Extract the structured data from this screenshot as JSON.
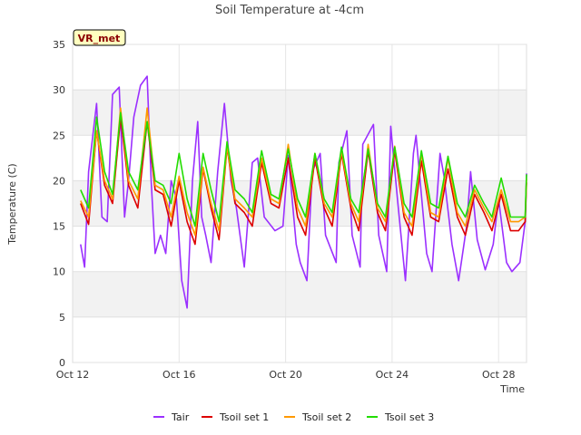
{
  "chart_data": {
    "type": "line",
    "title": "Soil Temperature at -4cm",
    "xlabel": "Time",
    "ylabel": "Temperature (C)",
    "badge": "VR_met",
    "x_range": [
      "2023-10-12",
      "2023-10-29"
    ],
    "ylim": [
      0,
      35
    ],
    "y_ticks": [
      0,
      5,
      10,
      15,
      20,
      25,
      30,
      35
    ],
    "x_ticks": [
      {
        "day": 12,
        "label": "Oct 12"
      },
      {
        "day": 16,
        "label": "Oct 16"
      },
      {
        "day": 20,
        "label": "Oct 20"
      },
      {
        "day": 24,
        "label": "Oct 24"
      },
      {
        "day": 28,
        "label": "Oct 28"
      }
    ],
    "grid": "horizontal bands",
    "legend_position": "bottom",
    "x_units": "day of October",
    "series": [
      {
        "name": "Tair",
        "color": "#9b30ff",
        "x": [
          12.3,
          12.45,
          12.6,
          12.9,
          13.1,
          13.3,
          13.5,
          13.75,
          13.95,
          14.1,
          14.3,
          14.55,
          14.8,
          14.95,
          15.1,
          15.3,
          15.5,
          15.7,
          15.9,
          16.1,
          16.3,
          16.5,
          16.7,
          16.85,
          17.0,
          17.2,
          17.45,
          17.7,
          17.95,
          18.15,
          18.45,
          18.75,
          18.95,
          19.2,
          19.6,
          19.9,
          20.1,
          20.4,
          20.55,
          20.8,
          21.0,
          21.3,
          21.5,
          21.9,
          22.0,
          22.3,
          22.5,
          22.8,
          22.9,
          23.3,
          23.5,
          23.8,
          23.95,
          24.2,
          24.5,
          24.8,
          24.9,
          25.3,
          25.5,
          25.8,
          25.95,
          26.25,
          26.5,
          26.8,
          26.95,
          27.2,
          27.5,
          27.8,
          28.0,
          28.3,
          28.5,
          28.8,
          29.0,
          29.05
        ],
        "values": [
          13,
          10.5,
          21,
          28.5,
          16,
          15.5,
          29.5,
          30.3,
          16,
          20,
          27,
          30.5,
          31.5,
          20,
          12,
          14,
          12,
          20,
          18,
          9,
          6,
          20,
          26.5,
          16,
          14,
          11,
          21,
          28.5,
          20,
          17,
          10.5,
          22,
          22.5,
          16,
          14.5,
          15,
          22.8,
          13,
          11,
          9,
          21,
          23,
          14,
          11,
          22,
          25.5,
          14,
          10.5,
          24,
          26.2,
          14,
          10,
          26,
          18,
          9,
          23,
          25,
          12,
          10,
          23,
          20.5,
          13,
          9,
          15,
          21,
          13.5,
          10.2,
          13,
          18,
          11,
          10,
          11,
          15.5,
          20.8
        ]
      },
      {
        "name": "Tsoil set 1",
        "color": "#dd0000",
        "x": [
          12.3,
          12.6,
          12.9,
          13.2,
          13.5,
          13.8,
          14.1,
          14.45,
          14.8,
          15.1,
          15.4,
          15.7,
          16.0,
          16.3,
          16.6,
          16.9,
          17.2,
          17.5,
          17.8,
          18.1,
          18.45,
          18.75,
          19.1,
          19.45,
          19.75,
          20.1,
          20.45,
          20.75,
          21.1,
          21.45,
          21.75,
          22.1,
          22.45,
          22.75,
          23.1,
          23.45,
          23.75,
          24.1,
          24.45,
          24.75,
          25.1,
          25.45,
          25.75,
          26.1,
          26.45,
          26.75,
          27.1,
          27.45,
          27.75,
          28.1,
          28.45,
          28.75,
          29.0,
          29.05
        ],
        "values": [
          17.5,
          15.2,
          25.5,
          19.5,
          17.5,
          27,
          19.5,
          17,
          26.5,
          19,
          18.5,
          15,
          20,
          15.5,
          13,
          21.3,
          17,
          13.5,
          23.7,
          17.5,
          16.5,
          15,
          22,
          17.5,
          17,
          22.5,
          16,
          14,
          22.5,
          17,
          15,
          23,
          17,
          14.5,
          23.3,
          16.5,
          14.5,
          23.3,
          16,
          14,
          22.2,
          16,
          15.5,
          21.3,
          16,
          14,
          18.5,
          16.5,
          14.5,
          18.5,
          14.5,
          14.5,
          15.5,
          19.8
        ]
      },
      {
        "name": "Tsoil set 2",
        "color": "#ff9900",
        "x": [
          12.3,
          12.6,
          12.9,
          13.2,
          13.5,
          13.8,
          14.1,
          14.45,
          14.8,
          15.1,
          15.4,
          15.7,
          16.0,
          16.3,
          16.6,
          16.9,
          17.2,
          17.5,
          17.8,
          18.1,
          18.45,
          18.75,
          19.1,
          19.45,
          19.75,
          20.1,
          20.45,
          20.75,
          21.1,
          21.45,
          21.75,
          22.1,
          22.45,
          22.75,
          23.1,
          23.45,
          23.75,
          24.1,
          24.45,
          24.75,
          25.1,
          25.45,
          25.75,
          26.1,
          26.45,
          26.75,
          27.1,
          27.45,
          27.75,
          28.1,
          28.45,
          28.75,
          29.0,
          29.05
        ],
        "values": [
          17.8,
          16,
          25.5,
          20,
          18,
          28,
          20,
          18,
          28,
          19.5,
          19,
          16,
          20.5,
          16.5,
          14,
          21.5,
          17.5,
          14.5,
          23.8,
          18,
          17,
          16,
          22.5,
          18,
          17.5,
          24,
          17,
          15,
          23,
          17.5,
          16,
          23.3,
          17.5,
          15.5,
          24,
          17,
          15.5,
          23.8,
          16.5,
          15,
          23,
          16.5,
          16,
          22.5,
          16.5,
          15,
          19,
          17,
          15.5,
          19,
          15.5,
          15.5,
          16,
          20.2
        ]
      },
      {
        "name": "Tsoil set 3",
        "color": "#22dd00",
        "x": [
          12.3,
          12.6,
          12.9,
          13.2,
          13.5,
          13.8,
          14.1,
          14.45,
          14.8,
          15.1,
          15.4,
          15.7,
          16.0,
          16.3,
          16.6,
          16.9,
          17.2,
          17.5,
          17.8,
          18.1,
          18.45,
          18.75,
          19.1,
          19.45,
          19.75,
          20.1,
          20.45,
          20.75,
          21.1,
          21.45,
          21.75,
          22.1,
          22.45,
          22.75,
          23.1,
          23.45,
          23.75,
          24.1,
          24.45,
          24.75,
          25.1,
          25.45,
          25.75,
          26.1,
          26.45,
          26.75,
          27.1,
          27.45,
          27.75,
          28.1,
          28.45,
          28.75,
          29.0,
          29.05
        ],
        "values": [
          19,
          17,
          27,
          21,
          18.5,
          27.5,
          21,
          19,
          26.5,
          20,
          19.5,
          17.5,
          23,
          18,
          15,
          23,
          19,
          15.5,
          24.3,
          19,
          18,
          16.5,
          23.3,
          18.5,
          18,
          23.5,
          18,
          16,
          23,
          18,
          16.5,
          23.7,
          18,
          16.5,
          23.5,
          17.5,
          16,
          23.7,
          17.5,
          16,
          23.3,
          17.5,
          17,
          22.7,
          17.5,
          16,
          19.5,
          17.5,
          16,
          20.3,
          16,
          16,
          16,
          20.7
        ]
      }
    ]
  }
}
